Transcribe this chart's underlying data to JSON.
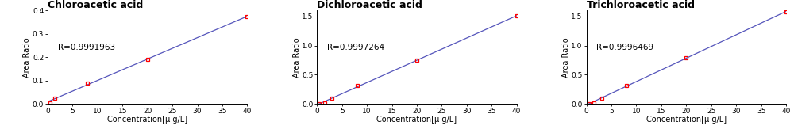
{
  "charts": [
    {
      "title": "Chloroacetic acid",
      "r_value": "R=0.9991963",
      "x": [
        0.5,
        1.5,
        8.0,
        20.0,
        40.0
      ],
      "y": [
        0.005,
        0.025,
        0.09,
        0.19,
        0.375
      ],
      "xlim": [
        0,
        40
      ],
      "ylim": [
        0,
        0.4
      ],
      "yticks": [
        0.0,
        0.1,
        0.2,
        0.3,
        0.4
      ],
      "xticks": [
        0,
        5,
        10,
        15,
        20,
        25,
        30,
        35,
        40
      ],
      "xlabel": "Concentration[μ g/L]",
      "ylabel": "Area Ratio"
    },
    {
      "title": "Dichloroacetic acid",
      "r_value": "R=0.9997264",
      "x": [
        0.5,
        1.5,
        3.0,
        8.0,
        20.0,
        40.0
      ],
      "y": [
        0.005,
        0.02,
        0.095,
        0.31,
        0.745,
        1.51
      ],
      "xlim": [
        0,
        40
      ],
      "ylim": [
        0,
        1.6
      ],
      "yticks": [
        0.0,
        0.5,
        1.0,
        1.5
      ],
      "xticks": [
        0,
        5,
        10,
        15,
        20,
        25,
        30,
        35,
        40
      ],
      "xlabel": "Concentration[μ g/L]",
      "ylabel": "Area Ratio"
    },
    {
      "title": "Trichloroacetic acid",
      "r_value": "R=0.9996469",
      "x": [
        0.5,
        1.5,
        3.0,
        8.0,
        20.0,
        40.0
      ],
      "y": [
        0.005,
        0.02,
        0.095,
        0.32,
        0.79,
        1.58
      ],
      "xlim": [
        0,
        40
      ],
      "ylim": [
        0,
        1.6
      ],
      "yticks": [
        0.0,
        0.5,
        1.0,
        1.5
      ],
      "xticks": [
        0,
        5,
        10,
        15,
        20,
        25,
        30,
        35,
        40
      ],
      "xlabel": "Concentration[μ g/L]",
      "ylabel": "Area Ratio"
    }
  ],
  "line_color": "#5555bb",
  "marker_color": "red",
  "bg_color": "white",
  "title_fontsize": 9,
  "label_fontsize": 7,
  "tick_fontsize": 6.5,
  "r_fontsize": 7.5
}
